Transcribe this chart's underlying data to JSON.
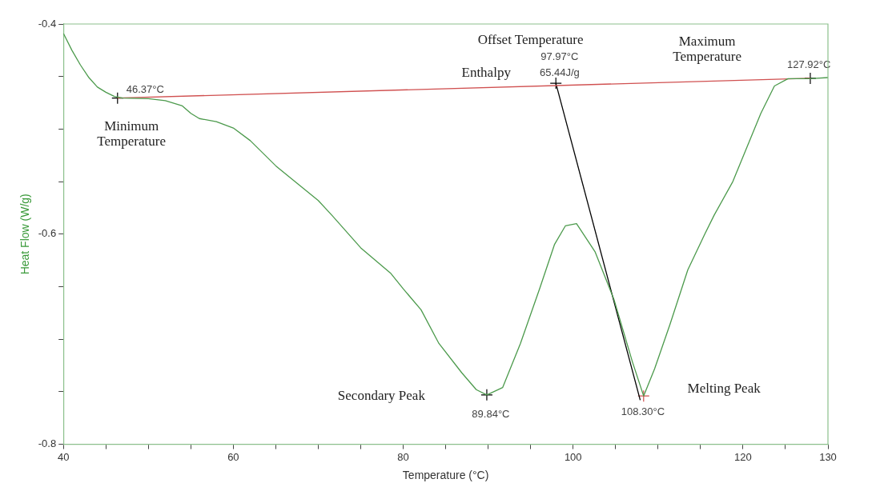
{
  "chart_data": {
    "type": "line",
    "xlabel": "Temperature (°C)",
    "ylabel": "Heat Flow (W/g)",
    "xlim": [
      40,
      130
    ],
    "ylim": [
      -0.8,
      -0.4
    ],
    "xticks": [
      40,
      {
        "value": 45,
        "label": null
      },
      {
        "value": 50,
        "label": null
      },
      {
        "value": 55,
        "label": null
      },
      60,
      {
        "value": 65,
        "label": null
      },
      {
        "value": 70,
        "label": null
      },
      {
        "value": 75,
        "label": null
      },
      80,
      {
        "value": 85,
        "label": null
      },
      {
        "value": 90,
        "label": null
      },
      {
        "value": 95,
        "label": null
      },
      100,
      {
        "value": 105,
        "label": null
      },
      {
        "value": 110,
        "label": null
      },
      {
        "value": 115,
        "label": null
      },
      120,
      {
        "value": 125,
        "label": null
      },
      130
    ],
    "yticks": [
      -0.8,
      {
        "value": -0.75,
        "label": null
      },
      {
        "value": -0.7,
        "label": null
      },
      {
        "value": -0.65,
        "label": null
      },
      -0.6,
      {
        "value": -0.55,
        "label": null
      },
      {
        "value": -0.5,
        "label": null
      },
      {
        "value": -0.45,
        "label": null
      },
      -0.4
    ],
    "marker": "none",
    "line_style": "solid",
    "series": [
      {
        "color": "#4c9a4c",
        "x": [
          40,
          41,
          42,
          43,
          44,
          45,
          46,
          47,
          50,
          52,
          54,
          55,
          56,
          58,
          60,
          62,
          65,
          70,
          71.6,
          75,
          78.5,
          80,
          82.1,
          84.2,
          86.9,
          88.6,
          89.84,
          91.7,
          93.8,
          96.1,
          97.8,
          99.1,
          100.4,
          102.6,
          104.8,
          107,
          108.3,
          109.6,
          111.4,
          113.5,
          115.5,
          116.6,
          118.8,
          122.1,
          123.7,
          125.3,
          127.92,
          130
        ],
        "values": [
          -0.409,
          -0.425,
          -0.439,
          -0.451,
          -0.46,
          -0.465,
          -0.469,
          -0.4705,
          -0.471,
          -0.473,
          -0.478,
          -0.485,
          -0.49,
          -0.493,
          -0.499,
          -0.511,
          -0.535,
          -0.568,
          -0.582,
          -0.613,
          -0.637,
          -0.652,
          -0.672,
          -0.704,
          -0.732,
          -0.748,
          -0.753,
          -0.746,
          -0.704,
          -0.651,
          -0.61,
          -0.592,
          -0.59,
          -0.617,
          -0.662,
          -0.722,
          -0.754,
          -0.728,
          -0.686,
          -0.634,
          -0.6,
          -0.582,
          -0.55,
          -0.485,
          -0.459,
          -0.452,
          -0.452,
          -0.451
        ]
      },
      {
        "color": "#d05050",
        "x": [
          46.37,
          127.92
        ],
        "values": [
          -0.4705,
          -0.4517
        ]
      },
      {
        "color": "#000000",
        "x": [
          97.97,
          107.9
        ],
        "values": [
          -0.4564,
          -0.758
        ]
      },
      {
        "type": "scatter",
        "marker": "cross",
        "colors": [
          "#000000",
          "#000000",
          "#000000",
          "#000000",
          "#d05050"
        ],
        "x": [
          46.37,
          97.97,
          127.92,
          89.84,
          108.3
        ],
        "values": [
          -0.4705,
          -0.4564,
          -0.4517,
          -0.753,
          -0.754
        ]
      }
    ],
    "annotations": [
      "46.37°C",
      "Minimum\nTemperature",
      "Offset Temperature",
      "97.97°C",
      "Enthalpy",
      "65.44J/g",
      "Maximum\nTemperature",
      "127.92°C",
      "Secondary Peak",
      "89.84°C",
      "108.30°C",
      "Melting Peak"
    ]
  }
}
